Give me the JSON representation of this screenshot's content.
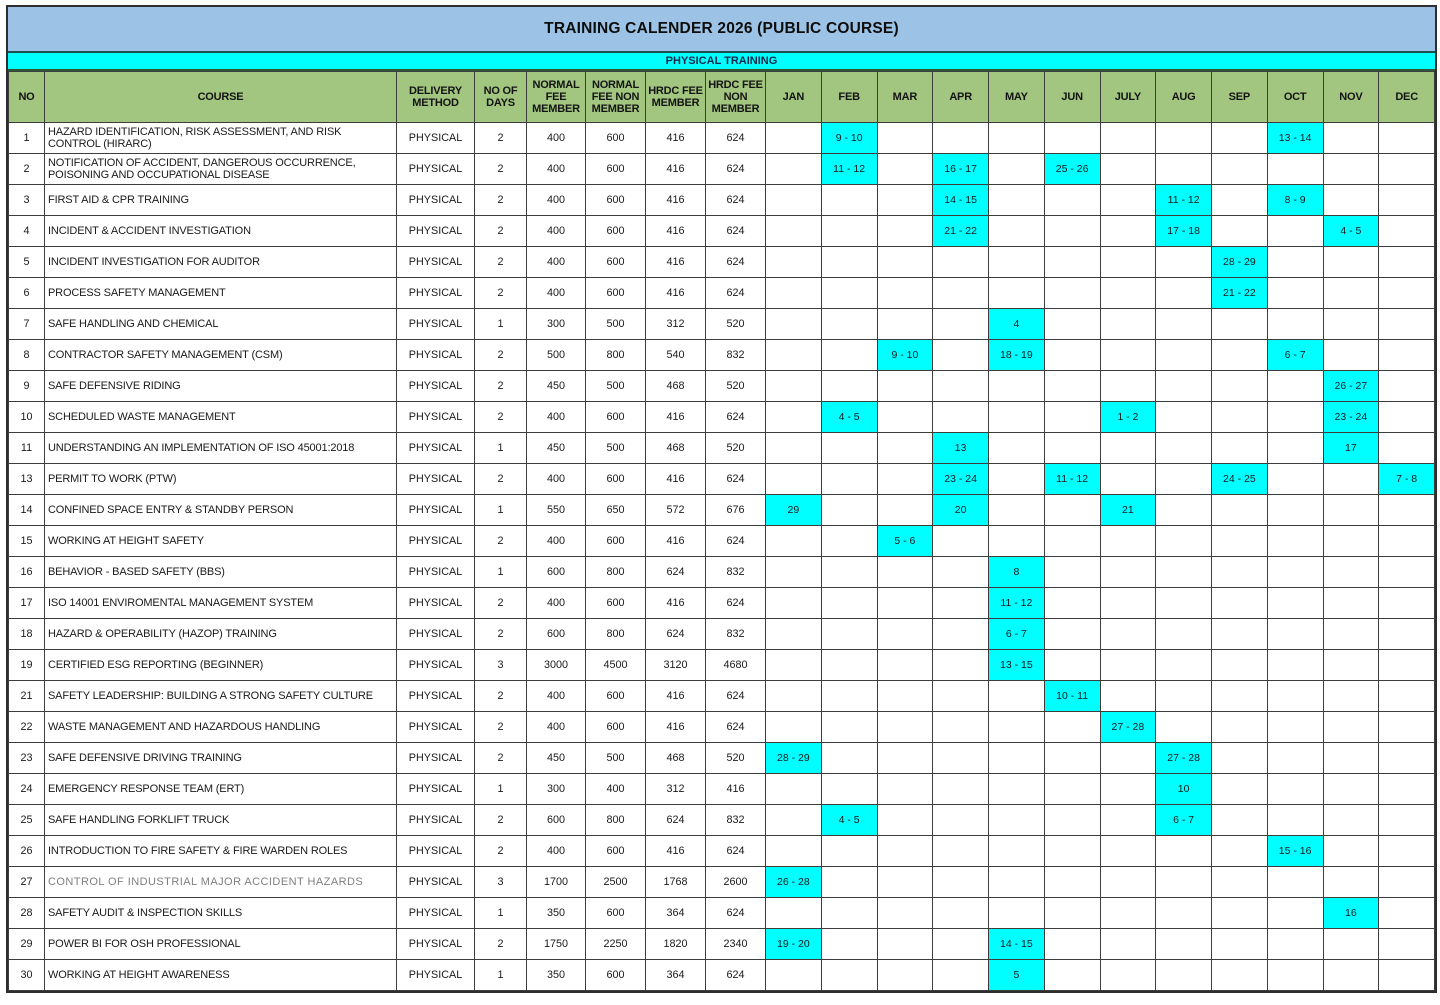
{
  "title": "TRAINING CALENDER 2026 (PUBLIC COURSE)",
  "section_label": "PHYSICAL TRAINING",
  "colors": {
    "title_bg": "#9CC3E5",
    "section_bg": "#00FFFF",
    "header_bg": "#A2C57F",
    "highlight": "#00FFFF",
    "grid_line": "#3d3d3d"
  },
  "column_headers": [
    "NO",
    "COURSE",
    "DELIVERY METHOD",
    "NO OF DAYS",
    "NORMAL FEE MEMBER",
    "NORMAL FEE NON MEMBER",
    "HRDC FEE MEMBER",
    "HRDC FEE NON MEMBER"
  ],
  "months": [
    "JAN",
    "FEB",
    "MAR",
    "APR",
    "MAY",
    "JUN",
    "JULY",
    "AUG",
    "SEP",
    "OCT",
    "NOV",
    "DEC"
  ],
  "rows": [
    {
      "no": "1",
      "course": "HAZARD IDENTIFICATION, RISK ASSESSMENT, AND RISK CONTROL (HIRARC)",
      "delivery": "PHYSICAL",
      "days": "2",
      "fees": [
        "400",
        "600",
        "416",
        "624"
      ],
      "dates": {
        "FEB": "9 - 10",
        "OCT": "13 - 14"
      }
    },
    {
      "no": "2",
      "course": "NOTIFICATION OF ACCIDENT, DANGEROUS OCCURRENCE, POISONING AND OCCUPATIONAL DISEASE",
      "delivery": "PHYSICAL",
      "days": "2",
      "fees": [
        "400",
        "600",
        "416",
        "624"
      ],
      "dates": {
        "FEB": "11 - 12",
        "APR": "16 - 17",
        "JUN": "25 - 26"
      }
    },
    {
      "no": "3",
      "course": "FIRST AID & CPR TRAINING",
      "delivery": "PHYSICAL",
      "days": "2",
      "fees": [
        "400",
        "600",
        "416",
        "624"
      ],
      "dates": {
        "APR": "14 - 15",
        "AUG": "11 - 12",
        "OCT": "8 - 9"
      }
    },
    {
      "no": "4",
      "course": "INCIDENT & ACCIDENT INVESTIGATION",
      "delivery": "PHYSICAL",
      "days": "2",
      "fees": [
        "400",
        "600",
        "416",
        "624"
      ],
      "dates": {
        "APR": "21 - 22",
        "AUG": "17 - 18",
        "NOV": "4 - 5"
      }
    },
    {
      "no": "5",
      "course": "INCIDENT INVESTIGATION FOR AUDITOR",
      "delivery": "PHYSICAL",
      "days": "2",
      "fees": [
        "400",
        "600",
        "416",
        "624"
      ],
      "dates": {
        "SEP": "28 - 29"
      }
    },
    {
      "no": "6",
      "course": "PROCESS SAFETY MANAGEMENT",
      "delivery": "PHYSICAL",
      "days": "2",
      "fees": [
        "400",
        "600",
        "416",
        "624"
      ],
      "dates": {
        "SEP": "21 - 22"
      }
    },
    {
      "no": "7",
      "course": "SAFE HANDLING AND CHEMICAL",
      "delivery": "PHYSICAL",
      "days": "1",
      "fees": [
        "300",
        "500",
        "312",
        "520"
      ],
      "dates": {
        "MAY": "4"
      }
    },
    {
      "no": "8",
      "course": "CONTRACTOR SAFETY MANAGEMENT (CSM)",
      "delivery": "PHYSICAL",
      "days": "2",
      "fees": [
        "500",
        "800",
        "540",
        "832"
      ],
      "dates": {
        "MAR": "9 - 10",
        "MAY": "18 - 19",
        "OCT": "6 - 7"
      }
    },
    {
      "no": "9",
      "course": "SAFE DEFENSIVE RIDING",
      "delivery": "PHYSICAL",
      "days": "2",
      "fees": [
        "450",
        "500",
        "468",
        "520"
      ],
      "dates": {
        "NOV": "26 - 27"
      }
    },
    {
      "no": "10",
      "course": "SCHEDULED WASTE MANAGEMENT",
      "delivery": "PHYSICAL",
      "days": "2",
      "fees": [
        "400",
        "600",
        "416",
        "624"
      ],
      "dates": {
        "FEB": "4 - 5",
        "JULY": "1 - 2",
        "NOV": "23 - 24"
      }
    },
    {
      "no": "11",
      "course": "UNDERSTANDING AN IMPLEMENTATION OF ISO 45001:2018",
      "delivery": "PHYSICAL",
      "days": "1",
      "fees": [
        "450",
        "500",
        "468",
        "520"
      ],
      "dates": {
        "APR": "13",
        "NOV": "17"
      }
    },
    {
      "no": "13",
      "course": "PERMIT TO WORK (PTW)",
      "delivery": "PHYSICAL",
      "days": "2",
      "fees": [
        "400",
        "600",
        "416",
        "624"
      ],
      "dates": {
        "APR": "23 - 24",
        "JUN": "11 - 12",
        "SEP": "24 - 25",
        "DEC": "7 - 8"
      }
    },
    {
      "no": "14",
      "course": "CONFINED SPACE ENTRY & STANDBY PERSON",
      "delivery": "PHYSICAL",
      "days": "1",
      "fees": [
        "550",
        "650",
        "572",
        "676"
      ],
      "dates": {
        "JAN": "29",
        "APR": "20",
        "JULY": "21"
      }
    },
    {
      "no": "15",
      "course": "WORKING AT HEIGHT SAFETY",
      "delivery": "PHYSICAL",
      "days": "2",
      "fees": [
        "400",
        "600",
        "416",
        "624"
      ],
      "dates": {
        "MAR": "5 - 6"
      }
    },
    {
      "no": "16",
      "course": "BEHAVIOR - BASED SAFETY (BBS)",
      "delivery": "PHYSICAL",
      "days": "1",
      "fees": [
        "600",
        "800",
        "624",
        "832"
      ],
      "dates": {
        "MAY": "8"
      }
    },
    {
      "no": "17",
      "course": "ISO 14001 ENVIROMENTAL MANAGEMENT SYSTEM",
      "delivery": "PHYSICAL",
      "days": "2",
      "fees": [
        "400",
        "600",
        "416",
        "624"
      ],
      "dates": {
        "MAY": "11 - 12"
      }
    },
    {
      "no": "18",
      "course": "HAZARD & OPERABILITY (HAZOP) TRAINING",
      "delivery": "PHYSICAL",
      "days": "2",
      "fees": [
        "600",
        "800",
        "624",
        "832"
      ],
      "dates": {
        "MAY": "6 - 7"
      }
    },
    {
      "no": "19",
      "course": "CERTIFIED ESG REPORTING (BEGINNER)",
      "delivery": "PHYSICAL",
      "days": "3",
      "fees": [
        "3000",
        "4500",
        "3120",
        "4680"
      ],
      "dates": {
        "MAY": "13 - 15"
      }
    },
    {
      "no": "21",
      "course": "SAFETY LEADERSHIP: BUILDING A STRONG SAFETY CULTURE",
      "delivery": "PHYSICAL",
      "days": "2",
      "fees": [
        "400",
        "600",
        "416",
        "624"
      ],
      "dates": {
        "JUN": "10 - 11"
      }
    },
    {
      "no": "22",
      "course": "WASTE MANAGEMENT AND HAZARDOUS HANDLING",
      "delivery": "PHYSICAL",
      "days": "2",
      "fees": [
        "400",
        "600",
        "416",
        "624"
      ],
      "dates": {
        "JULY": "27 - 28"
      }
    },
    {
      "no": "23",
      "course": "SAFE DEFENSIVE DRIVING TRAINING",
      "delivery": "PHYSICAL",
      "days": "2",
      "fees": [
        "450",
        "500",
        "468",
        "520"
      ],
      "dates": {
        "JAN": "28 - 29",
        "AUG": "27 - 28"
      }
    },
    {
      "no": "24",
      "course": "EMERGENCY RESPONSE TEAM (ERT)",
      "delivery": "PHYSICAL",
      "days": "1",
      "fees": [
        "300",
        "400",
        "312",
        "416"
      ],
      "dates": {
        "AUG": "10"
      }
    },
    {
      "no": "25",
      "course": "SAFE HANDLING FORKLIFT TRUCK",
      "delivery": "PHYSICAL",
      "days": "2",
      "fees": [
        "600",
        "800",
        "624",
        "832"
      ],
      "dates": {
        "FEB": "4 - 5",
        "AUG": "6 - 7"
      }
    },
    {
      "no": "26",
      "course": "INTRODUCTION TO FIRE SAFETY & FIRE WARDEN ROLES",
      "delivery": "PHYSICAL",
      "days": "2",
      "fees": [
        "400",
        "600",
        "416",
        "624"
      ],
      "dates": {
        "OCT": "15 - 16"
      }
    },
    {
      "no": "27",
      "course": "CONTROL OF INDUSTRIAL MAJOR ACCIDENT HAZARDS",
      "delivery": "PHYSICAL",
      "days": "3",
      "fees": [
        "1700",
        "2500",
        "1768",
        "2600"
      ],
      "dates": {
        "JAN": "26 - 28"
      },
      "muted": true
    },
    {
      "no": "28",
      "course": "SAFETY AUDIT & INSPECTION SKILLS",
      "delivery": "PHYSICAL",
      "days": "1",
      "fees": [
        "350",
        "600",
        "364",
        "624"
      ],
      "dates": {
        "NOV": "16"
      }
    },
    {
      "no": "29",
      "course": "POWER BI FOR OSH PROFESSIONAL",
      "delivery": "PHYSICAL",
      "days": "2",
      "fees": [
        "1750",
        "2250",
        "1820",
        "2340"
      ],
      "dates": {
        "JAN": "19 - 20",
        "MAY": "14 - 15"
      }
    },
    {
      "no": "30",
      "course": "WORKING AT HEIGHT AWARENESS",
      "delivery": "PHYSICAL",
      "days": "1",
      "fees": [
        "350",
        "600",
        "364",
        "624"
      ],
      "dates": {
        "MAY": "5"
      }
    }
  ]
}
